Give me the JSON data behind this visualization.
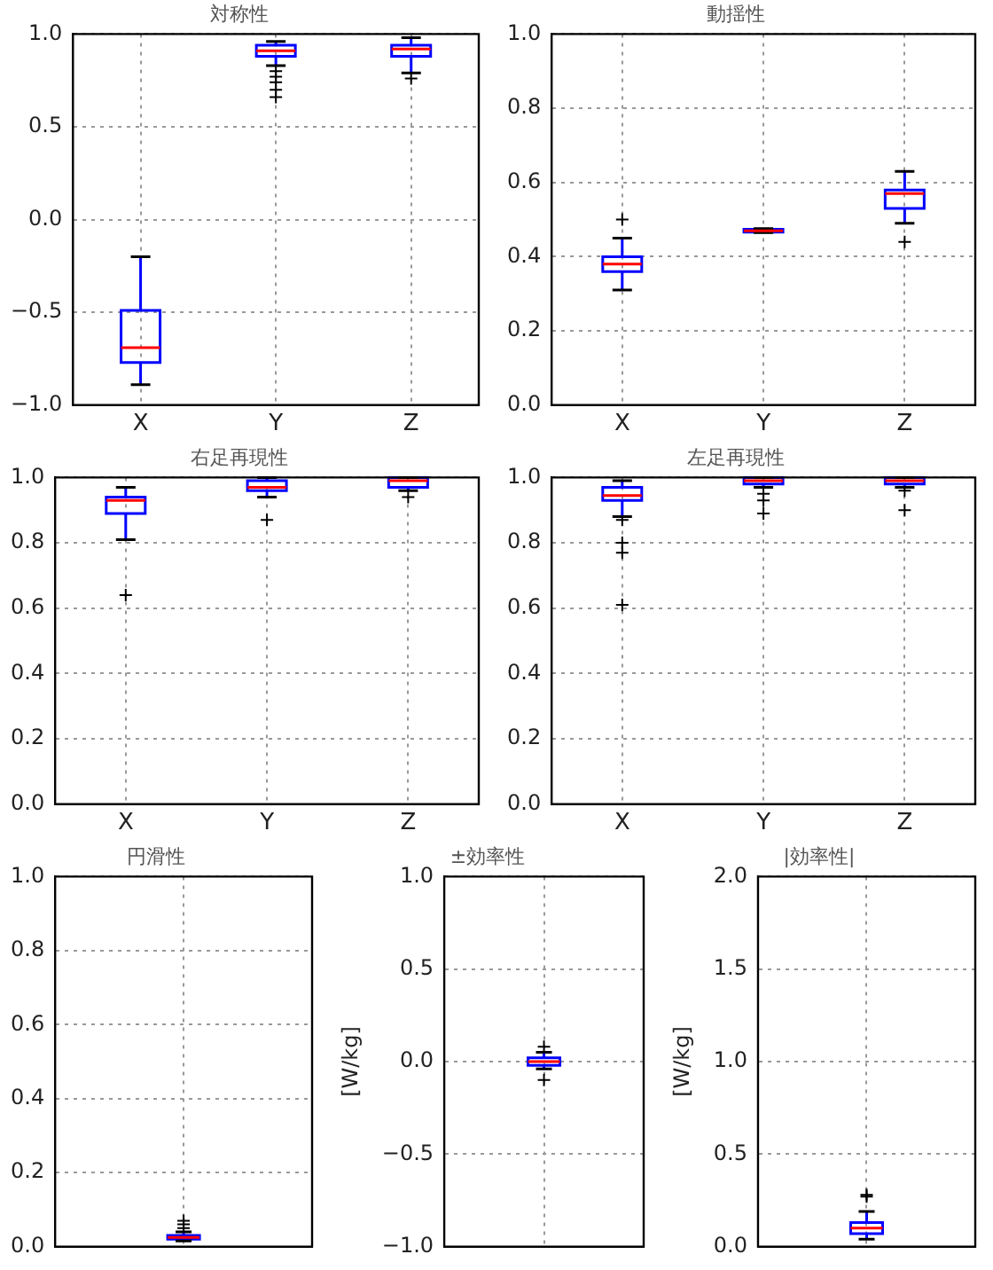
{
  "chart_data": [
    {
      "type": "box",
      "title": "対称性",
      "categories": [
        "X",
        "Y",
        "Z"
      ],
      "ylim": [
        -1,
        1
      ],
      "yticks": [
        {
          "value": -1,
          "label": "−1.0"
        },
        {
          "value": -0.5,
          "label": "−0.5"
        },
        {
          "value": 0,
          "label": "0.0"
        },
        {
          "value": 0.5,
          "label": "0.5"
        },
        {
          "value": 1,
          "label": "1.0"
        }
      ],
      "grid": true,
      "series": [
        {
          "color": "#0000ff",
          "boxes": [
            {
              "low": -0.89,
              "q1": -0.77,
              "median": -0.69,
              "q3": -0.49,
              "high": -0.2
            },
            {
              "low": 0.83,
              "q1": 0.88,
              "median": 0.91,
              "q3": 0.94,
              "high": 0.96,
              "outliers": [
                0.8,
                0.77,
                0.74,
                0.7,
                0.66
              ]
            },
            {
              "low": 0.79,
              "q1": 0.88,
              "median": 0.92,
              "q3": 0.94,
              "high": 0.98,
              "outliers": [
                0.76
              ]
            }
          ]
        }
      ]
    },
    {
      "type": "box",
      "title": "動揺性",
      "categories": [
        "X",
        "Y",
        "Z"
      ],
      "ylim": [
        0,
        1
      ],
      "yticks": [
        {
          "value": 0,
          "label": "0.0"
        },
        0.2,
        0.4,
        0.6,
        0.8,
        {
          "value": 1,
          "label": "1.0"
        }
      ],
      "grid": true,
      "series": [
        {
          "color": "#0000ff",
          "boxes": [
            {
              "low": 0.31,
              "q1": 0.36,
              "median": 0.38,
              "q3": 0.4,
              "high": 0.45,
              "outliers": [
                0.5
              ]
            },
            {
              "low": 0.465,
              "q1": 0.466,
              "median": 0.47,
              "q3": 0.474,
              "high": 0.476
            },
            {
              "low": 0.49,
              "q1": 0.53,
              "median": 0.57,
              "q3": 0.58,
              "high": 0.63,
              "outliers": [
                0.44
              ]
            }
          ]
        }
      ]
    },
    {
      "type": "box",
      "title": "右足再現性",
      "categories": [
        "X",
        "Y",
        "Z"
      ],
      "ylim": [
        0,
        1
      ],
      "yticks": [
        {
          "value": 0,
          "label": "0.0"
        },
        0.2,
        0.4,
        0.6,
        0.8,
        {
          "value": 1,
          "label": "1.0"
        }
      ],
      "grid": true,
      "series": [
        {
          "color": "#0000ff",
          "boxes": [
            {
              "low": 0.81,
              "q1": 0.89,
              "median": 0.93,
              "q3": 0.94,
              "high": 0.97,
              "outliers": [
                0.64
              ]
            },
            {
              "low": 0.94,
              "q1": 0.96,
              "median": 0.97,
              "q3": 0.99,
              "high": 1,
              "outliers": [
                0.87
              ]
            },
            {
              "low": 0.96,
              "q1": 0.97,
              "median": 0.99,
              "q3": 1,
              "high": 1,
              "outliers": [
                0.94
              ]
            }
          ]
        }
      ]
    },
    {
      "type": "box",
      "title": "左足再現性",
      "categories": [
        "X",
        "Y",
        "Z"
      ],
      "ylim": [
        0,
        1
      ],
      "yticks": [
        {
          "value": 0,
          "label": "0.0"
        },
        0.2,
        0.4,
        0.6,
        0.8,
        {
          "value": 1,
          "label": "1.0"
        }
      ],
      "grid": true,
      "series": [
        {
          "color": "#0000ff",
          "boxes": [
            {
              "low": 0.88,
              "q1": 0.93,
              "median": 0.945,
              "q3": 0.97,
              "high": 0.99,
              "outliers": [
                0.87,
                0.8,
                0.77,
                0.61
              ]
            },
            {
              "low": 0.97,
              "q1": 0.98,
              "median": 0.99,
              "q3": 1,
              "high": 1,
              "outliers": [
                0.95,
                0.93,
                0.89
              ]
            },
            {
              "low": 0.97,
              "q1": 0.98,
              "median": 0.99,
              "q3": 1,
              "high": 1,
              "outliers": [
                0.96,
                0.9
              ]
            }
          ]
        }
      ]
    },
    {
      "type": "box",
      "title": "円滑性",
      "categories": [
        null
      ],
      "ylim": [
        0,
        1
      ],
      "yticks": [
        {
          "value": 0,
          "label": "0.0"
        },
        0.2,
        0.4,
        0.6,
        0.8,
        {
          "value": 1,
          "label": "1.0"
        }
      ],
      "grid": true,
      "tick_labels": "y",
      "series": [
        {
          "color": "#0000ff",
          "boxes": [
            {
              "low": 0.015,
              "q1": 0.02,
              "median": 0.025,
              "q3": 0.03,
              "high": 0.04,
              "outliers": [
                0.05,
                0.06,
                0.07
              ]
            }
          ]
        }
      ]
    },
    {
      "type": "box",
      "title": "±効率性",
      "ylabel": "[W/kg]",
      "categories": [
        null
      ],
      "ylim": [
        -1,
        1
      ],
      "yticks": [
        {
          "value": -1,
          "label": "−1.0"
        },
        {
          "value": -0.5,
          "label": "−0.5"
        },
        {
          "value": 0,
          "label": "0.0"
        },
        {
          "value": 0.5,
          "label": "0.5"
        },
        {
          "value": 1,
          "label": "1.0"
        }
      ],
      "grid": true,
      "tick_labels": "y",
      "series": [
        {
          "color": "#0000ff",
          "boxes": [
            {
              "low": -0.04,
              "q1": -0.02,
              "median": 0,
              "q3": 0.02,
              "high": 0.05,
              "outliers": [
                0.08,
                -0.1
              ]
            }
          ]
        }
      ]
    },
    {
      "type": "box",
      "title": "|効率性|",
      "ylabel": "[W/kg]",
      "categories": [
        null
      ],
      "ylim": [
        0,
        2
      ],
      "yticks": [
        {
          "value": 0,
          "label": "0.0"
        },
        {
          "value": 0.5,
          "label": "0.5"
        },
        {
          "value": 1,
          "label": "1.0"
        },
        {
          "value": 1.5,
          "label": "1.5"
        },
        {
          "value": 2,
          "label": "2.0"
        }
      ],
      "grid": true,
      "tick_labels": "y",
      "series": [
        {
          "color": "#0000ff",
          "boxes": [
            {
              "low": 0.04,
              "q1": 0.07,
              "median": 0.1,
              "q3": 0.13,
              "high": 0.19,
              "outliers": [
                0.27,
                0.28
              ]
            }
          ]
        }
      ]
    }
  ]
}
